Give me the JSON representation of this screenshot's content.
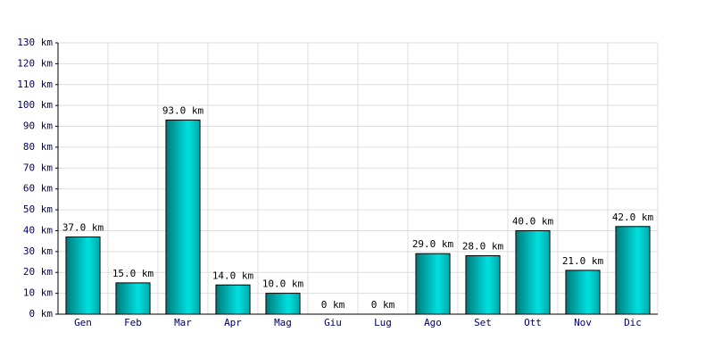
{
  "chart_data": {
    "type": "bar",
    "categories": [
      "Gen",
      "Feb",
      "Mar",
      "Apr",
      "Mag",
      "Giu",
      "Lug",
      "Ago",
      "Set",
      "Ott",
      "Nov",
      "Dic"
    ],
    "values": [
      37,
      15,
      93,
      14,
      10,
      0,
      0,
      29,
      28,
      40,
      21,
      42
    ],
    "value_labels": [
      "37.0 km",
      "15.0 km",
      "93.0 km",
      "14.0 km",
      "10.0 km",
      "0 km",
      "0 km",
      "29.0 km",
      "28.0 km",
      "40.0 km",
      "21.0 km",
      "42.0 km"
    ],
    "color": "#00e0e0",
    "ylim": [
      0,
      130
    ],
    "yticks": [
      {
        "value": 0,
        "label": "0 km"
      },
      {
        "value": 10,
        "label": "10 km"
      },
      {
        "value": 20,
        "label": "20 km"
      },
      {
        "value": 30,
        "label": "30 km"
      },
      {
        "value": 40,
        "label": "40 km"
      },
      {
        "value": 50,
        "label": "50 km"
      },
      {
        "value": 60,
        "label": "60 km"
      },
      {
        "value": 70,
        "label": "70 km"
      },
      {
        "value": 80,
        "label": "80 km"
      },
      {
        "value": 90,
        "label": "90 km"
      },
      {
        "value": 100,
        "label": "100 km"
      },
      {
        "value": 110,
        "label": "110 km"
      },
      {
        "value": 120,
        "label": "120 km"
      },
      {
        "value": 130,
        "label": "130 km"
      }
    ],
    "grid": true
  }
}
